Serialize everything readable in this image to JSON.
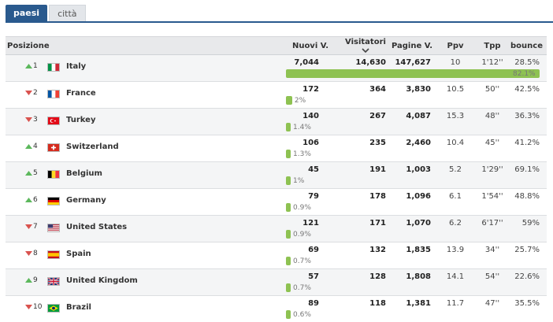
{
  "tabs": [
    {
      "label": "paesi",
      "active": true
    },
    {
      "label": "città",
      "active": false
    }
  ],
  "columns": {
    "posizione": "Posizione",
    "nuovi": "Nuovi V.",
    "visitatori": "Visitatori",
    "pagine": "Pagine V.",
    "ppv": "Ppv",
    "tpp": "Tpp",
    "bounce": "bounce"
  },
  "colors": {
    "accent": "#2a5a8e",
    "bar": "#8ec252",
    "up": "#5cb85c",
    "down": "#d9534f"
  },
  "rows": [
    {
      "rank": "1",
      "trend": "up",
      "country": "Italy",
      "flag": "it",
      "nuovi": "7,044",
      "visitatori": "14,630",
      "pagine": "147,627",
      "ppv": "10",
      "tpp": "1'12''",
      "bounce": "28.5%",
      "share": "82.1%",
      "share_value": 82.1
    },
    {
      "rank": "2",
      "trend": "down",
      "country": "France",
      "flag": "fr",
      "nuovi": "172",
      "visitatori": "364",
      "pagine": "3,830",
      "ppv": "10.5",
      "tpp": "50''",
      "bounce": "42.5%",
      "share": "2%",
      "share_value": 2
    },
    {
      "rank": "3",
      "trend": "down",
      "country": "Turkey",
      "flag": "tr",
      "nuovi": "140",
      "visitatori": "267",
      "pagine": "4,087",
      "ppv": "15.3",
      "tpp": "48''",
      "bounce": "36.3%",
      "share": "1.4%",
      "share_value": 1.4
    },
    {
      "rank": "4",
      "trend": "up",
      "country": "Switzerland",
      "flag": "ch",
      "nuovi": "106",
      "visitatori": "235",
      "pagine": "2,460",
      "ppv": "10.4",
      "tpp": "45''",
      "bounce": "41.2%",
      "share": "1.3%",
      "share_value": 1.3
    },
    {
      "rank": "5",
      "trend": "up",
      "country": "Belgium",
      "flag": "be",
      "nuovi": "45",
      "visitatori": "191",
      "pagine": "1,003",
      "ppv": "5.2",
      "tpp": "1'29''",
      "bounce": "69.1%",
      "share": "1%",
      "share_value": 1
    },
    {
      "rank": "6",
      "trend": "up",
      "country": "Germany",
      "flag": "de",
      "nuovi": "79",
      "visitatori": "178",
      "pagine": "1,096",
      "ppv": "6.1",
      "tpp": "1'54''",
      "bounce": "48.8%",
      "share": "0.9%",
      "share_value": 0.9
    },
    {
      "rank": "7",
      "trend": "down",
      "country": "United States",
      "flag": "us",
      "nuovi": "121",
      "visitatori": "171",
      "pagine": "1,070",
      "ppv": "6.2",
      "tpp": "6'17''",
      "bounce": "59%",
      "share": "0.9%",
      "share_value": 0.9
    },
    {
      "rank": "8",
      "trend": "down",
      "country": "Spain",
      "flag": "es",
      "nuovi": "69",
      "visitatori": "132",
      "pagine": "1,835",
      "ppv": "13.9",
      "tpp": "34''",
      "bounce": "25.7%",
      "share": "0.7%",
      "share_value": 0.7
    },
    {
      "rank": "9",
      "trend": "up",
      "country": "United Kingdom",
      "flag": "gb",
      "nuovi": "57",
      "visitatori": "128",
      "pagine": "1,808",
      "ppv": "14.1",
      "tpp": "54''",
      "bounce": "22.6%",
      "share": "0.7%",
      "share_value": 0.7
    },
    {
      "rank": "10",
      "trend": "down",
      "country": "Brazil",
      "flag": "br",
      "nuovi": "89",
      "visitatori": "118",
      "pagine": "1,381",
      "ppv": "11.7",
      "tpp": "47''",
      "bounce": "35.5%",
      "share": "0.6%",
      "share_value": 0.6
    }
  ]
}
